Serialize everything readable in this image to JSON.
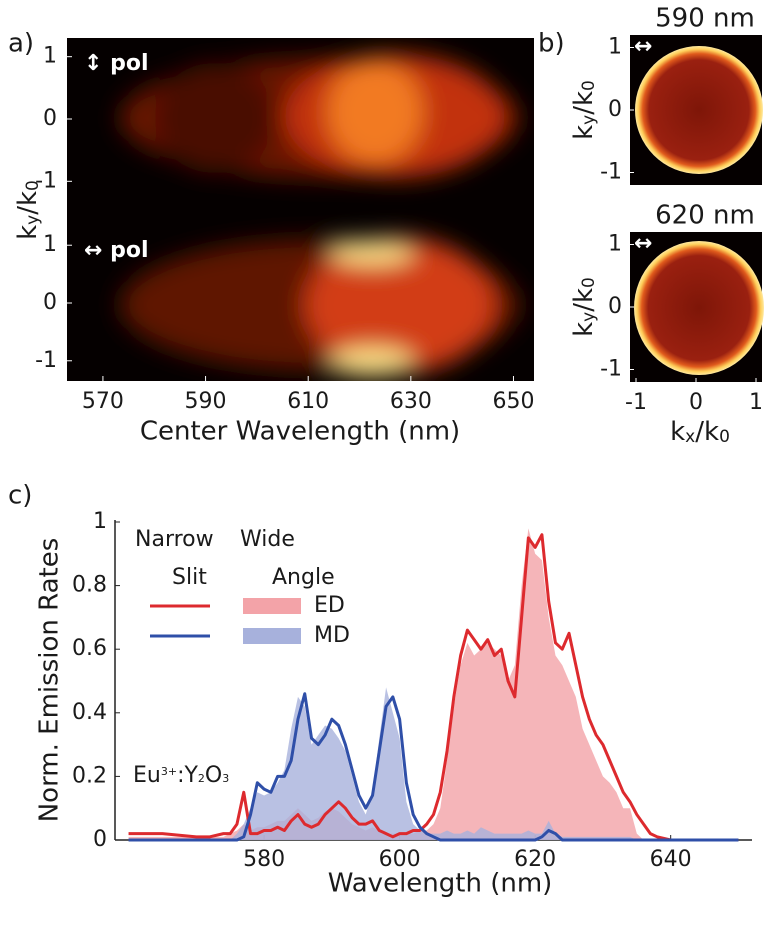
{
  "chart_data": [
    {
      "type": "heatmap",
      "panel": "a)",
      "ylabel": [
        "k",
        {
          "sub": "y"
        },
        "/k",
        {
          "sub": "0"
        }
      ],
      "xlabel": "Center Wavelength (nm)",
      "xlim": [
        563,
        654
      ],
      "xticks": [
        570,
        590,
        610,
        630,
        650
      ],
      "subplots": [
        {
          "annotation": "↕ pol",
          "ylim": [
            -1.3,
            1.3
          ],
          "yticks": [
            1,
            0,
            -1
          ]
        },
        {
          "annotation": "↔ pol",
          "ylim": [
            -1.35,
            1.35
          ],
          "yticks": [
            1,
            0,
            -1
          ]
        }
      ]
    },
    {
      "type": "image",
      "panel": "b)",
      "xlabel": [
        "k",
        {
          "sub": "x"
        },
        "/k",
        {
          "sub": "0"
        }
      ],
      "subplots": [
        {
          "title": "590 nm",
          "annotation": "↔",
          "ylabel": [
            "k",
            {
              "sub": "y"
            },
            "/k",
            {
              "sub": "0"
            }
          ],
          "ylim": [
            -1.2,
            1.2
          ],
          "yticks": [
            1,
            0,
            -1
          ]
        },
        {
          "title": "620 nm",
          "annotation": "↔",
          "ylabel": [
            "k",
            {
              "sub": "y"
            },
            "/k",
            {
              "sub": "0"
            }
          ],
          "ylim": [
            -1.2,
            1.2
          ],
          "yticks": [
            1,
            0,
            -1
          ],
          "xlim": [
            -1.1,
            1.1
          ],
          "xticks": [
            -1,
            0,
            1
          ]
        }
      ]
    },
    {
      "type": "line",
      "panel": "c)",
      "xlabel": "Wavelength (nm)",
      "ylabel": "Norm. Emission Rates",
      "legend_columns": [
        [
          "Narrow",
          "Slit"
        ],
        [
          "Wide",
          "Angle"
        ]
      ],
      "annotation": [
        "Eu",
        {
          "sup": "3+"
        },
        ":Y",
        {
          "sub": "2"
        },
        "O",
        {
          "sub": "3"
        }
      ],
      "xlim": [
        558,
        652
      ],
      "xticks": [
        580,
        600,
        620,
        640
      ],
      "ylim": [
        0,
        1
      ],
      "yticks": [
        0,
        0.2,
        0.4,
        0.6,
        0.8,
        1
      ],
      "x": [
        560,
        565,
        570,
        572,
        574,
        575,
        576,
        577,
        578,
        579,
        580,
        581,
        582,
        583,
        584,
        585,
        586,
        587,
        588,
        589,
        590,
        591,
        592,
        593,
        594,
        595,
        596,
        597,
        598,
        599,
        600,
        601,
        602,
        603,
        604,
        605,
        606,
        607,
        608,
        609,
        610,
        611,
        612,
        613,
        614,
        615,
        616,
        617,
        618,
        619,
        620,
        621,
        622,
        623,
        624,
        625,
        626,
        627,
        628,
        629,
        630,
        631,
        632,
        633,
        634,
        635,
        636,
        637,
        638,
        640,
        645,
        650
      ],
      "series": [
        {
          "name": "ED",
          "color": "#dd2a2e",
          "wide_color": "#f3a3a8",
          "values": [
            0.02,
            0.02,
            0.01,
            0.01,
            0.02,
            0.02,
            0.05,
            0.15,
            0.02,
            0.02,
            0.03,
            0.03,
            0.04,
            0.03,
            0.06,
            0.08,
            0.05,
            0.04,
            0.05,
            0.08,
            0.1,
            0.12,
            0.1,
            0.07,
            0.05,
            0.05,
            0.06,
            0.03,
            0.02,
            0.01,
            0.02,
            0.02,
            0.03,
            0.03,
            0.05,
            0.08,
            0.15,
            0.28,
            0.45,
            0.58,
            0.66,
            0.63,
            0.6,
            0.63,
            0.58,
            0.6,
            0.5,
            0.45,
            0.7,
            0.95,
            0.92,
            0.96,
            0.75,
            0.62,
            0.6,
            0.65,
            0.55,
            0.45,
            0.38,
            0.33,
            0.3,
            0.25,
            0.2,
            0.15,
            0.12,
            0.08,
            0.05,
            0.02,
            0.01,
            0,
            0,
            0
          ],
          "wide_values": [
            0.01,
            0.01,
            0.01,
            0.01,
            0.01,
            0.02,
            0.03,
            0.05,
            0.03,
            0.04,
            0.04,
            0.05,
            0.06,
            0.06,
            0.08,
            0.1,
            0.08,
            0.06,
            0.07,
            0.09,
            0.1,
            0.09,
            0.07,
            0.05,
            0.04,
            0.03,
            0.04,
            0.03,
            0.02,
            0.02,
            0.02,
            0.02,
            0.02,
            0.03,
            0.03,
            0.05,
            0.1,
            0.25,
            0.42,
            0.55,
            0.62,
            0.58,
            0.6,
            0.62,
            0.6,
            0.58,
            0.5,
            0.55,
            0.8,
            0.98,
            0.9,
            0.88,
            0.7,
            0.58,
            0.55,
            0.5,
            0.45,
            0.35,
            0.3,
            0.25,
            0.2,
            0.18,
            0.15,
            0.1,
            0.1,
            0.02,
            0,
            0,
            0,
            0,
            0,
            0
          ]
        },
        {
          "name": "MD",
          "color": "#2f4fa8",
          "wide_color": "#a7b1dc",
          "values": [
            0,
            0,
            0,
            0,
            0,
            0,
            0,
            0.01,
            0.08,
            0.18,
            0.16,
            0.15,
            0.2,
            0.2,
            0.25,
            0.38,
            0.46,
            0.32,
            0.3,
            0.33,
            0.38,
            0.36,
            0.3,
            0.22,
            0.14,
            0.1,
            0.14,
            0.28,
            0.42,
            0.45,
            0.38,
            0.18,
            0.08,
            0.04,
            0.02,
            0.01,
            0,
            0,
            0,
            0,
            0,
            0,
            0,
            0,
            0,
            0,
            0,
            0,
            0,
            0,
            0,
            0.01,
            0.03,
            0.02,
            0,
            0,
            0,
            0,
            0,
            0,
            0,
            0,
            0,
            0,
            0,
            0,
            0,
            0,
            0,
            0,
            0,
            0
          ],
          "wide_values": [
            0,
            0,
            0,
            0,
            0,
            0,
            0.02,
            0.05,
            0.1,
            0.15,
            0.14,
            0.15,
            0.18,
            0.22,
            0.35,
            0.45,
            0.42,
            0.3,
            0.33,
            0.36,
            0.35,
            0.32,
            0.28,
            0.2,
            0.12,
            0.08,
            0.15,
            0.32,
            0.48,
            0.4,
            0.32,
            0.12,
            0.05,
            0.03,
            0.02,
            0.02,
            0.02,
            0.03,
            0.02,
            0.02,
            0.03,
            0.02,
            0.04,
            0.03,
            0.02,
            0.02,
            0.02,
            0.02,
            0.02,
            0.03,
            0.02,
            0.02,
            0.06,
            0.02,
            0.01,
            0.01,
            0.01,
            0.01,
            0.01,
            0.01,
            0.01,
            0.01,
            0.01,
            0.01,
            0.01,
            0,
            0,
            0,
            0,
            0,
            0,
            0
          ]
        }
      ]
    }
  ]
}
